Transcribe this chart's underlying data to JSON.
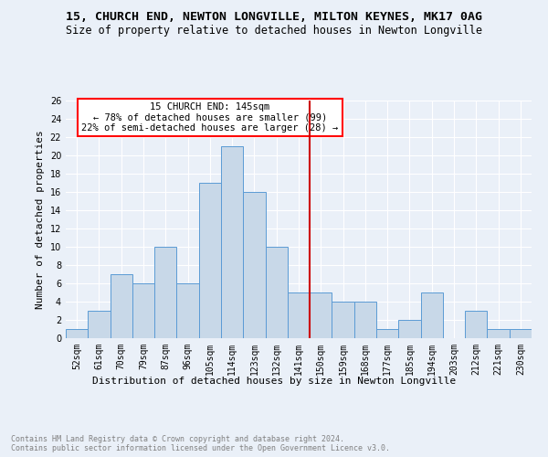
{
  "title1": "15, CHURCH END, NEWTON LONGVILLE, MILTON KEYNES, MK17 0AG",
  "title2": "Size of property relative to detached houses in Newton Longville",
  "xlabel": "Distribution of detached houses by size in Newton Longville",
  "ylabel": "Number of detached properties",
  "footnote": "Contains HM Land Registry data © Crown copyright and database right 2024.\nContains public sector information licensed under the Open Government Licence v3.0.",
  "categories": [
    "52sqm",
    "61sqm",
    "70sqm",
    "79sqm",
    "87sqm",
    "96sqm",
    "105sqm",
    "114sqm",
    "123sqm",
    "132sqm",
    "141sqm",
    "150sqm",
    "159sqm",
    "168sqm",
    "177sqm",
    "185sqm",
    "194sqm",
    "203sqm",
    "212sqm",
    "221sqm",
    "230sqm"
  ],
  "values": [
    1,
    3,
    7,
    6,
    10,
    6,
    17,
    21,
    16,
    10,
    5,
    5,
    4,
    4,
    1,
    2,
    5,
    0,
    3,
    1,
    1
  ],
  "bar_color": "#c8d8e8",
  "bar_edge_color": "#5b9bd5",
  "annotation_line1": "15 CHURCH END: 145sqm",
  "annotation_line2": "← 78% of detached houses are smaller (99)",
  "annotation_line3": "22% of semi-detached houses are larger (28) →",
  "vline_x": 10.5,
  "vline_color": "#cc0000",
  "ylim": [
    0,
    26
  ],
  "yticks": [
    0,
    2,
    4,
    6,
    8,
    10,
    12,
    14,
    16,
    18,
    20,
    22,
    24,
    26
  ],
  "background_color": "#eaf0f8",
  "plot_background": "#eaf0f8",
  "grid_color": "#ffffff",
  "title1_fontsize": 9.5,
  "title2_fontsize": 8.5,
  "xlabel_fontsize": 8,
  "ylabel_fontsize": 8,
  "footnote_fontsize": 6,
  "tick_fontsize": 7,
  "annot_fontsize": 7.5
}
